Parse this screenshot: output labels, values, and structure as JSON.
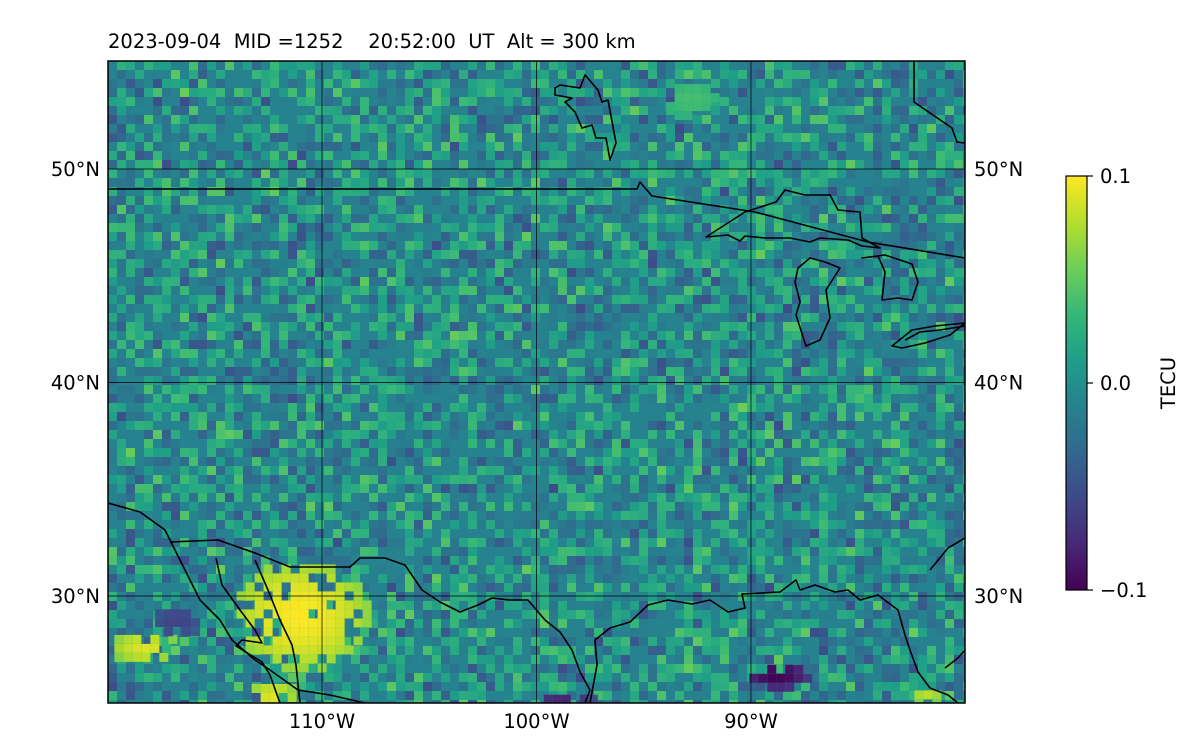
{
  "title": "2023-09-04  MID =1252    20:52:00  UT  Alt = 300 km",
  "map": {
    "lon_ticks": [
      {
        "lon": -110,
        "label": "110°W"
      },
      {
        "lon": -100,
        "label": "100°W"
      },
      {
        "lon": -90,
        "label": "90°W"
      }
    ],
    "lat_ticks": [
      {
        "lat": 50,
        "label": "50°N"
      },
      {
        "lat": 40,
        "label": "40°N"
      },
      {
        "lat": 30,
        "label": "30°N"
      }
    ],
    "hotspots": [
      {
        "name": "sonora-enhancement",
        "lon": -111.2,
        "lat": 29.3,
        "rx": 3.2,
        "ry": 2.6,
        "value": 0.1
      },
      {
        "name": "baja-enhancement",
        "lon": -118.5,
        "lat": 27.8,
        "rx": 1.6,
        "ry": 0.8,
        "value": 0.09
      },
      {
        "name": "mexico-enhancement",
        "lon": -112.5,
        "lat": 25.5,
        "rx": 1.2,
        "ry": 0.8,
        "value": 0.09
      },
      {
        "name": "gulf-depletion",
        "lon": -89.0,
        "lat": 26.5,
        "rx": 1.5,
        "ry": 0.7,
        "value": -0.1
      },
      {
        "name": "texas-depletion",
        "lon": -99.0,
        "lat": 25.3,
        "rx": 1.5,
        "ry": 0.5,
        "value": -0.08
      },
      {
        "name": "west-depletion",
        "lon": -117.0,
        "lat": 29.0,
        "rx": 1.2,
        "ry": 0.8,
        "value": -0.06
      },
      {
        "name": "northern-green-patch",
        "lon": -93.0,
        "lat": 53.5,
        "rx": 1.4,
        "ry": 0.9,
        "value": 0.04
      },
      {
        "name": "southeast-enhancement",
        "lon": -82.0,
        "lat": 25.5,
        "rx": 0.8,
        "ry": 0.5,
        "value": 0.08
      }
    ]
  },
  "colorbar": {
    "label": "TECU",
    "min": -0.1,
    "max": 0.1,
    "ticks": [
      {
        "value": 0.1,
        "label": "0.1"
      },
      {
        "value": 0.0,
        "label": "0.0"
      },
      {
        "value": -0.1,
        "label": "−0.1"
      }
    ],
    "colormap": [
      "#440154",
      "#482878",
      "#3e4989",
      "#31688e",
      "#26828e",
      "#1f9e89",
      "#35b779",
      "#6ece58",
      "#b5de2b",
      "#fde725"
    ]
  },
  "colors": {
    "background_field": "#26828e",
    "gridline": "#000000",
    "coastline": "#000000"
  }
}
